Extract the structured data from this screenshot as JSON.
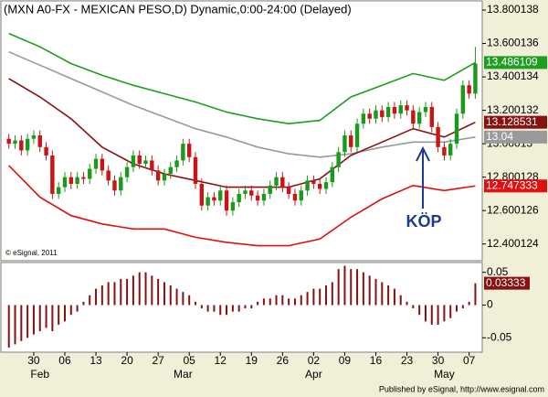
{
  "chart_data": [
    {
      "type": "candlestick",
      "title": "(MXN A0-FX - MEXICAN PESO,D) Dynamic,0:00-24:00 (Delayed)",
      "annotations": [
        "© eSignal, 2011",
        "KÖP"
      ],
      "categories": [
        null,
        null,
        null,
        null,
        "30",
        null,
        null,
        null,
        null,
        "06",
        null,
        null,
        null,
        null,
        "13",
        null,
        null,
        null,
        null,
        "20",
        null,
        null,
        null,
        null,
        "27",
        null,
        null,
        null,
        null,
        "05",
        null,
        null,
        null,
        null,
        "12",
        null,
        null,
        null,
        null,
        "19",
        null,
        null,
        null,
        null,
        "26",
        null,
        null,
        null,
        null,
        "02",
        null,
        null,
        null,
        null,
        "09",
        null,
        null,
        null,
        null,
        "16",
        null,
        null,
        null,
        null,
        "23",
        null,
        null,
        null,
        null,
        "30",
        null,
        null,
        null,
        null,
        "07",
        null
      ],
      "x_groups": [
        {
          "label": "Feb",
          "start": 5
        },
        {
          "label": "Mar",
          "start": 28
        },
        {
          "label": "Apr",
          "start": 49
        },
        {
          "label": "May",
          "start": 70
        }
      ],
      "open": [
        13.03,
        13.0,
        13.02,
        12.96,
        13.03,
        13.05,
        12.98,
        12.93,
        12.7,
        12.74,
        12.8,
        12.76,
        12.8,
        12.79,
        12.85,
        12.91,
        12.84,
        12.78,
        12.72,
        12.8,
        12.86,
        12.93,
        12.88,
        12.9,
        12.84,
        12.78,
        12.82,
        12.86,
        12.9,
        13.0,
        12.92,
        12.76,
        12.63,
        12.68,
        12.66,
        12.72,
        12.6,
        12.65,
        12.7,
        12.72,
        12.69,
        12.66,
        12.7,
        12.75,
        12.8,
        12.74,
        12.7,
        12.66,
        12.72,
        12.78,
        12.76,
        12.73,
        12.77,
        12.86,
        12.95,
        13.05,
        12.98,
        13.12,
        13.18,
        13.15,
        13.2,
        13.16,
        13.22,
        13.18,
        13.23,
        13.2,
        13.12,
        13.19,
        13.22,
        13.1,
        12.98,
        12.93,
        13.0,
        13.18,
        13.35,
        13.3
      ],
      "high": [
        13.06,
        13.05,
        13.05,
        13.06,
        13.08,
        13.08,
        13.01,
        12.96,
        12.77,
        12.83,
        12.83,
        12.83,
        12.83,
        12.88,
        12.94,
        12.94,
        12.87,
        12.81,
        12.83,
        12.89,
        12.96,
        12.96,
        12.93,
        12.93,
        12.87,
        12.85,
        12.89,
        12.93,
        13.03,
        13.03,
        12.95,
        12.79,
        12.71,
        12.71,
        12.75,
        12.75,
        12.68,
        12.73,
        12.75,
        12.75,
        12.72,
        12.73,
        12.78,
        12.83,
        12.83,
        12.77,
        12.73,
        12.75,
        12.81,
        12.81,
        12.79,
        12.8,
        12.89,
        12.98,
        13.08,
        13.08,
        13.15,
        13.21,
        13.21,
        13.23,
        13.23,
        13.25,
        13.25,
        13.26,
        13.26,
        13.23,
        13.22,
        13.25,
        13.25,
        13.13,
        13.01,
        13.03,
        13.21,
        13.38,
        13.38,
        13.58
      ],
      "low": [
        12.97,
        12.97,
        12.93,
        12.93,
        13.0,
        12.95,
        12.9,
        12.67,
        12.67,
        12.71,
        12.73,
        12.73,
        12.76,
        12.76,
        12.82,
        12.81,
        12.75,
        12.69,
        12.69,
        12.77,
        12.83,
        12.85,
        12.85,
        12.81,
        12.75,
        12.75,
        12.79,
        12.83,
        12.87,
        12.89,
        12.73,
        12.6,
        12.6,
        12.63,
        12.63,
        12.57,
        12.57,
        12.62,
        12.67,
        12.66,
        12.63,
        12.63,
        12.67,
        12.72,
        12.71,
        12.67,
        12.63,
        12.63,
        12.69,
        12.73,
        12.7,
        12.7,
        12.74,
        12.83,
        12.92,
        12.95,
        12.95,
        13.09,
        13.12,
        13.12,
        13.13,
        13.13,
        13.15,
        13.15,
        13.17,
        13.09,
        13.09,
        13.16,
        13.07,
        12.95,
        12.9,
        12.9,
        12.97,
        13.15,
        13.27,
        13.27
      ],
      "close": [
        13.0,
        13.02,
        12.96,
        13.03,
        13.05,
        12.98,
        12.93,
        12.7,
        12.74,
        12.8,
        12.76,
        12.8,
        12.79,
        12.85,
        12.91,
        12.84,
        12.78,
        12.72,
        12.8,
        12.86,
        12.93,
        12.88,
        12.9,
        12.84,
        12.78,
        12.82,
        12.86,
        12.9,
        13.0,
        12.92,
        12.76,
        12.63,
        12.68,
        12.66,
        12.72,
        12.6,
        12.65,
        12.7,
        12.72,
        12.69,
        12.66,
        12.7,
        12.75,
        12.8,
        12.74,
        12.7,
        12.66,
        12.72,
        12.78,
        12.76,
        12.73,
        12.77,
        12.86,
        12.95,
        13.05,
        12.98,
        13.12,
        13.18,
        13.15,
        13.2,
        13.16,
        13.22,
        13.18,
        13.23,
        13.2,
        13.12,
        13.19,
        13.22,
        13.1,
        12.98,
        12.93,
        13.0,
        13.18,
        13.35,
        13.3,
        13.48
      ],
      "up_color": "#1a9a1a",
      "down_color": "#c81414",
      "series": [
        {
          "color": "#1e9e1e",
          "x": [
            0,
            5,
            10,
            15,
            20,
            25,
            30,
            35,
            40,
            45,
            50,
            55,
            60,
            65,
            70,
            75
          ],
          "values": [
            13.66,
            13.58,
            13.48,
            13.41,
            13.35,
            13.3,
            13.25,
            13.19,
            13.15,
            13.12,
            13.14,
            13.28,
            13.35,
            13.42,
            13.38,
            13.486109
          ]
        },
        {
          "color": "#9a9a9a",
          "x": [
            0,
            5,
            10,
            15,
            20,
            25,
            30,
            35,
            40,
            45,
            50,
            55,
            60,
            65,
            70,
            75
          ],
          "values": [
            13.55,
            13.47,
            13.39,
            13.31,
            13.23,
            13.16,
            13.09,
            13.04,
            12.98,
            12.94,
            12.92,
            12.94,
            12.98,
            13.01,
            13.01,
            13.04
          ]
        },
        {
          "color": "#8b1010",
          "x": [
            0,
            5,
            10,
            15,
            20,
            25,
            30,
            35,
            40,
            45,
            50,
            55,
            60,
            65,
            70,
            75
          ],
          "values": [
            13.39,
            13.28,
            13.15,
            12.98,
            12.88,
            12.82,
            12.78,
            12.74,
            12.74,
            12.74,
            12.79,
            12.93,
            13.01,
            13.09,
            13.04,
            13.128531
          ]
        },
        {
          "color": "#e01010",
          "x": [
            0,
            5,
            10,
            15,
            20,
            25,
            30,
            35,
            40,
            45,
            50,
            55,
            60,
            65,
            70,
            75
          ],
          "values": [
            12.87,
            12.68,
            12.57,
            12.52,
            12.49,
            12.49,
            12.44,
            12.41,
            12.39,
            12.39,
            12.43,
            12.56,
            12.67,
            12.75,
            12.72,
            12.747333
          ]
        }
      ],
      "ylim": [
        12.3,
        13.855
      ],
      "yticks": [
        13.800138,
        13.600136,
        13.400134,
        13.200132,
        13.00013,
        12.800128,
        12.600126,
        12.400124
      ]
    },
    {
      "type": "bar",
      "values": [
        -0.065,
        -0.06,
        -0.055,
        -0.05,
        -0.045,
        -0.04,
        -0.035,
        -0.04,
        -0.03,
        -0.025,
        -0.015,
        -0.01,
        0.005,
        0.015,
        0.025,
        0.03,
        0.035,
        0.035,
        0.04,
        0.04,
        0.045,
        0.05,
        0.05,
        0.045,
        0.04,
        0.035,
        0.03,
        0.025,
        0.02,
        0.015,
        0.005,
        -0.005,
        -0.01,
        -0.01,
        -0.015,
        -0.015,
        -0.01,
        -0.01,
        -0.005,
        -0.005,
        0.005,
        0.01,
        0.01,
        0.015,
        0.015,
        0.01,
        0.01,
        0.015,
        0.02,
        0.025,
        0.025,
        0.03,
        0.035,
        0.055,
        0.06,
        0.055,
        0.055,
        0.05,
        0.045,
        0.04,
        0.035,
        0.03,
        0.025,
        0.015,
        0.005,
        -0.005,
        -0.015,
        -0.025,
        -0.03,
        -0.03,
        -0.025,
        -0.02,
        -0.01,
        -0.005,
        0.005,
        0.03333
      ],
      "color": "#8b1010",
      "ylim": [
        -0.072,
        0.065
      ],
      "yticks": [
        0.05,
        0,
        -0.05
      ]
    }
  ],
  "footer": "Published by eSignal, http://www.esignal.com"
}
